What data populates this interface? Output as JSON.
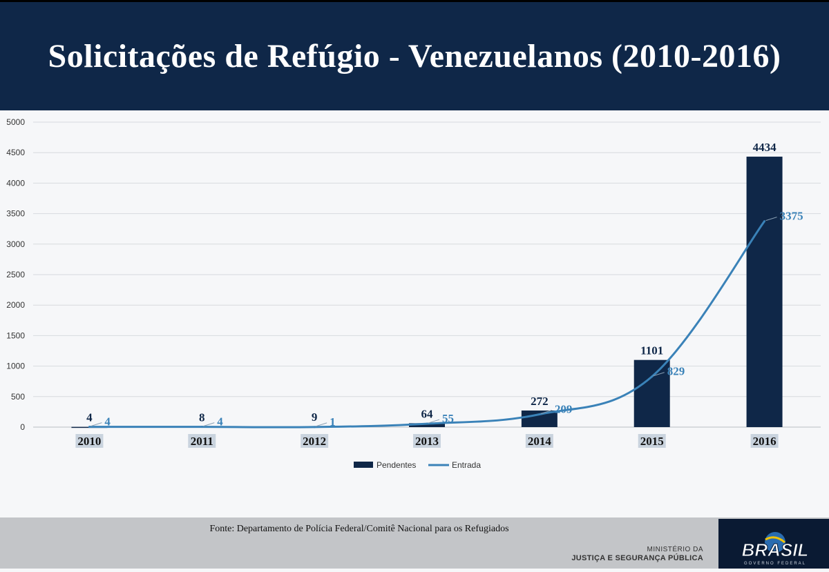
{
  "title": "Solicitações de Refúgio - Venezuelanos (2010-2016)",
  "footer": {
    "source": "Fonte: Departamento de Polícia Federal/Comitê Nacional para os Refugiados",
    "ministry_line1": "MINISTÉRIO DA",
    "ministry_line2": "JUSTIÇA E SEGURANÇA PÚBLICA",
    "logo_text": "BRASIL",
    "logo_sub": "GOVERNO FEDERAL"
  },
  "colors": {
    "header_bg": "#0f2748",
    "bar": "#0f2748",
    "line": "#3a82b8",
    "grid": "#d7dade"
  },
  "chart_data": {
    "type": "bar",
    "categories": [
      "2010",
      "2011",
      "2012",
      "2013",
      "2014",
      "2015",
      "2016"
    ],
    "series": [
      {
        "name": "Pendentes",
        "type": "bar",
        "color": "#0f2748",
        "values": [
          4,
          8,
          9,
          64,
          272,
          1101,
          4434
        ]
      },
      {
        "name": "Entrada",
        "type": "line",
        "color": "#3a82b8",
        "values": [
          4,
          4,
          1,
          55,
          209,
          829,
          3375
        ]
      }
    ],
    "ylim": [
      0,
      5000
    ],
    "yticks": [
      0,
      500,
      1000,
      1500,
      2000,
      2500,
      3000,
      3500,
      4000,
      4500,
      5000
    ],
    "grid": true,
    "legend": "bottom"
  }
}
